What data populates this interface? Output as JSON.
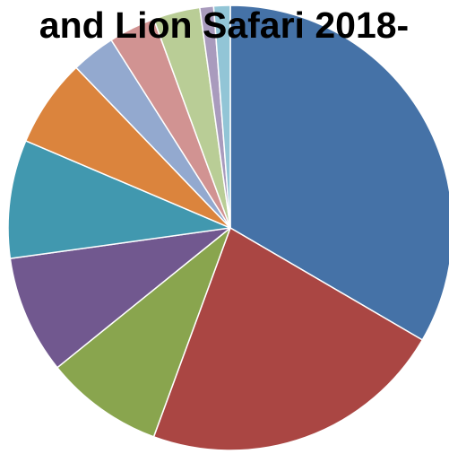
{
  "chart_data": {
    "type": "pie",
    "title": "and Lion Safari 2018-",
    "slices": [
      {
        "value": 33.4,
        "color": "#4572A7"
      },
      {
        "value": 22.2,
        "color": "#AA4643"
      },
      {
        "value": 8.6,
        "color": "#89A54E"
      },
      {
        "value": 8.6,
        "color": "#71588F"
      },
      {
        "value": 8.6,
        "color": "#4198AF"
      },
      {
        "value": 6.4,
        "color": "#DB843D"
      },
      {
        "value": 3.2,
        "color": "#93A9CF"
      },
      {
        "value": 3.4,
        "color": "#D19392"
      },
      {
        "value": 3.4,
        "color": "#B9CD96"
      },
      {
        "value": 1.0,
        "color": "#A99BBD"
      },
      {
        "value": 1.2,
        "color": "#92C5D6"
      }
    ],
    "start_angle_deg": 0,
    "direction": "clockwise",
    "legend": "none"
  }
}
